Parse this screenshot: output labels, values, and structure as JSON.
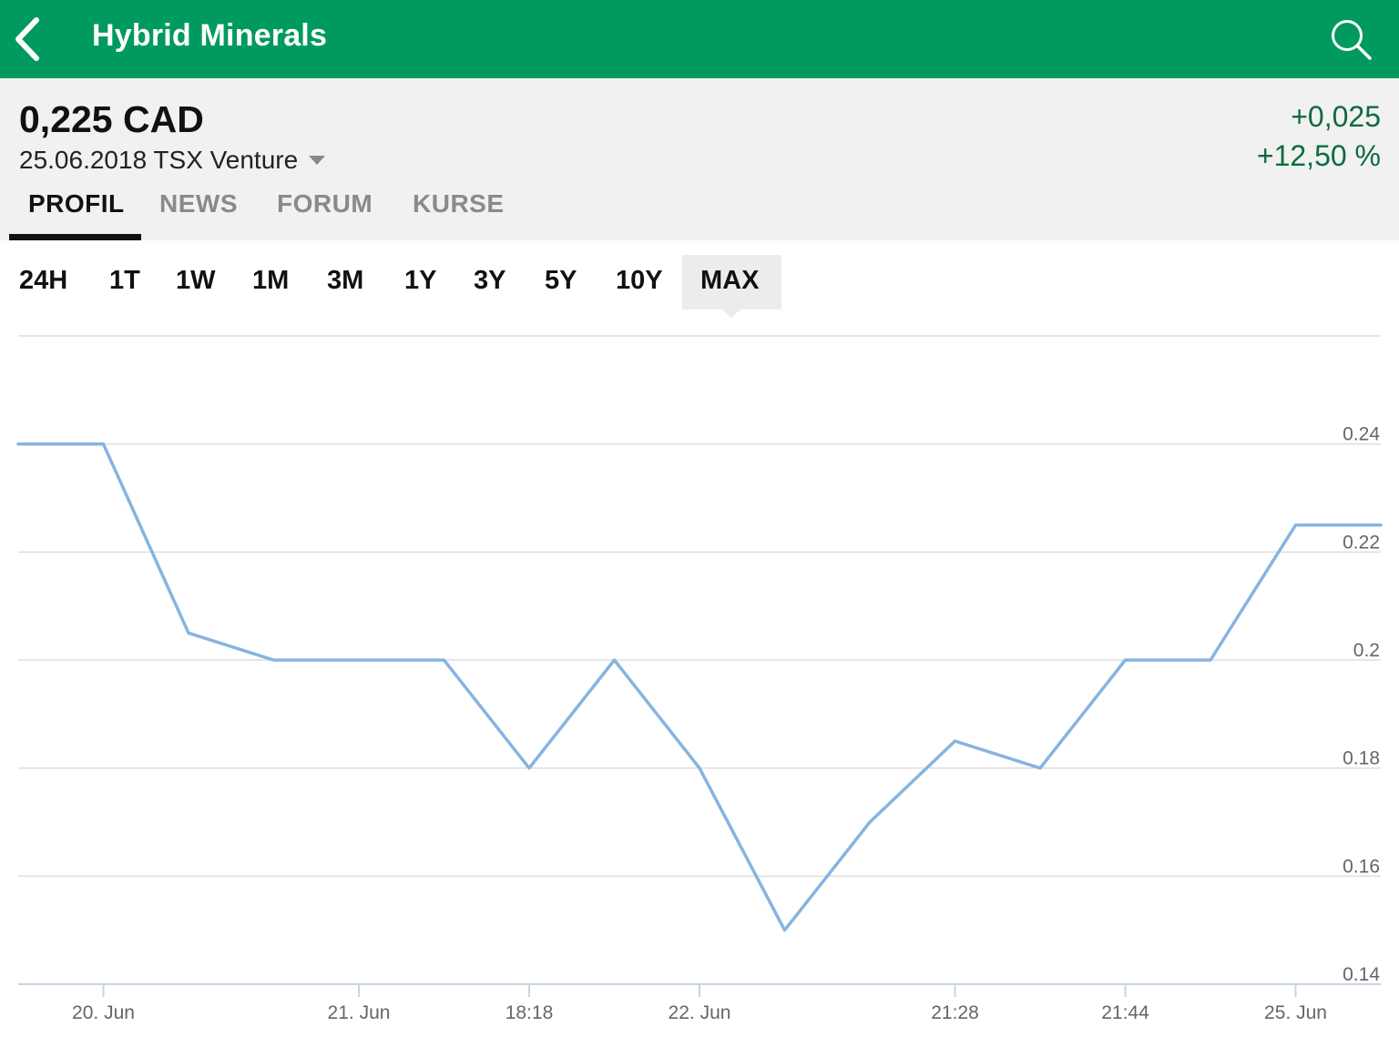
{
  "app": {
    "title": "Hybrid Minerals",
    "back_icon": "chevron-left-icon",
    "search_icon": "search-icon",
    "brand_color": "#009a5e"
  },
  "quote": {
    "price": "0,225 CAD",
    "date_exchange": "25.06.2018 TSX Venture",
    "change": "+0,025",
    "change_percent": "+12,50 %",
    "change_color": "#0d6b3f"
  },
  "tabs": [
    {
      "label": "PROFIL",
      "active": true
    },
    {
      "label": "NEWS",
      "active": false
    },
    {
      "label": "FORUM",
      "active": false
    },
    {
      "label": "KURSE",
      "active": false
    }
  ],
  "ranges": [
    {
      "label": "24H"
    },
    {
      "label": "1T"
    },
    {
      "label": "1W"
    },
    {
      "label": "1M"
    },
    {
      "label": "3M"
    },
    {
      "label": "1Y"
    },
    {
      "label": "3Y"
    },
    {
      "label": "5Y"
    },
    {
      "label": "10Y"
    },
    {
      "label": "MAX",
      "active": true
    }
  ],
  "chart_data": {
    "type": "line",
    "line_color": "#86b4e1",
    "ylim": [
      0.14,
      0.26
    ],
    "y_ticks": [
      "0.24",
      "0.22",
      "0.2",
      "0.18",
      "0.16",
      "0.14"
    ],
    "x_ticks": [
      "20. Jun",
      "21. Jun",
      "18:18",
      "22. Jun",
      "21:28",
      "21:44",
      "25. Jun"
    ],
    "grid": true,
    "series": [
      {
        "values": [
          0.24,
          0.24,
          0.205,
          0.2,
          0.2,
          0.2,
          0.18,
          0.2,
          0.18,
          0.15,
          0.17,
          0.185,
          0.18,
          0.2,
          0.2,
          0.225,
          0.225
        ]
      }
    ]
  }
}
